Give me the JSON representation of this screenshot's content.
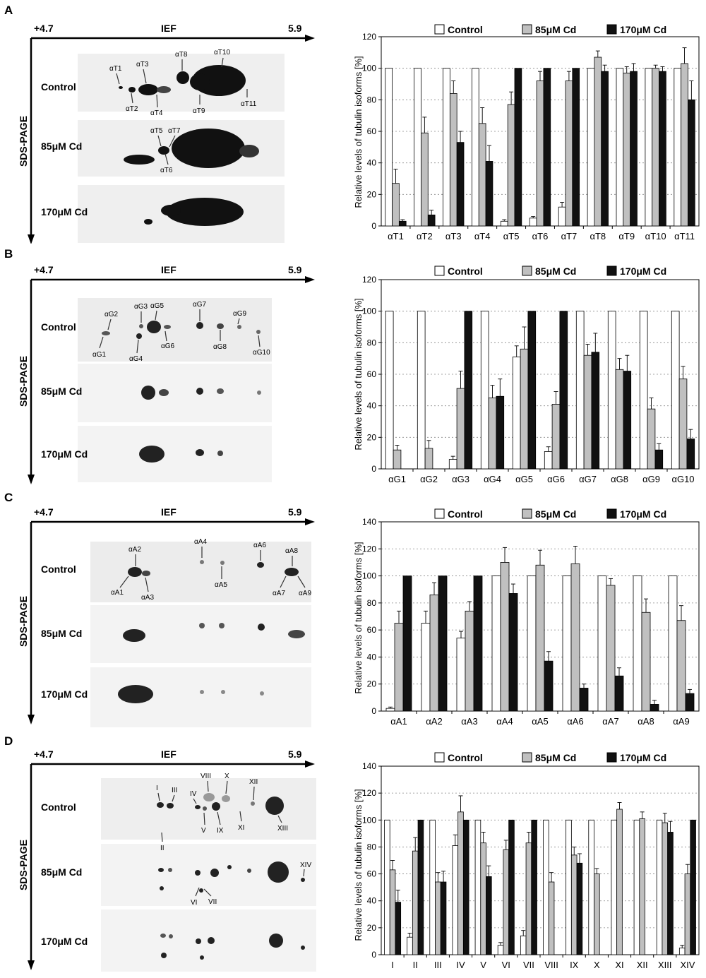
{
  "figure": {
    "panel_letters": [
      "A",
      "B",
      "C",
      "D"
    ]
  },
  "gel": {
    "ief_label": "IEF",
    "ief_left": "+4.7",
    "ief_right": "5.9",
    "sds_label": "SDS-PAGE",
    "row_labels": [
      "Control",
      "85μM Cd",
      "170μM Cd"
    ]
  },
  "legend": {
    "labels": [
      "Control",
      "85μM Cd",
      "170μM Cd"
    ],
    "colors": [
      "#ffffff",
      "#c0c0c0",
      "#111111"
    ]
  },
  "spot_labels": [
    [
      "αT1",
      "αT2",
      "αT3",
      "αT4",
      "αT5",
      "αT6",
      "αT7",
      "αT8",
      "αT9",
      "αT10",
      "αT11"
    ],
    [
      "αG1",
      "αG2",
      "αG3",
      "αG4",
      "αG5",
      "αG6",
      "αG7",
      "αG8",
      "αG9",
      "αG10"
    ],
    [
      "αA1",
      "αA2",
      "αA3",
      "αA4",
      "αA5",
      "αA6",
      "αA7",
      "αA8",
      "αA9"
    ],
    [
      "I",
      "II",
      "III",
      "IV",
      "V",
      "VI",
      "VII",
      "VIII",
      "IX",
      "X",
      "XI",
      "XII",
      "XIII",
      "XIV"
    ]
  ],
  "chart_data": [
    {
      "type": "bar",
      "ylabel": "Relative levels of tubulin isoforms [%]",
      "ylim": [
        0,
        120
      ],
      "yticks": [
        0,
        20,
        40,
        60,
        80,
        100,
        120
      ],
      "grid": "horizontal dotted",
      "legend_position": "top",
      "categories": [
        "αT1",
        "αT2",
        "αT3",
        "αT4",
        "αT5",
        "αT6",
        "αT7",
        "αT8",
        "αT9",
        "αT10",
        "αT11"
      ],
      "series": [
        {
          "name": "Control",
          "values": [
            100,
            100,
            100,
            100,
            3,
            5,
            12,
            100,
            100,
            100,
            100
          ],
          "errors": [
            0,
            0,
            0,
            0,
            1,
            1,
            3,
            0,
            0,
            0,
            0
          ]
        },
        {
          "name": "85μM Cd",
          "values": [
            27,
            59,
            84,
            65,
            77,
            92,
            92,
            107,
            97,
            100,
            103
          ],
          "errors": [
            9,
            10,
            8,
            10,
            8,
            6,
            6,
            4,
            4,
            2,
            10
          ]
        },
        {
          "name": "170μM Cd",
          "values": [
            3,
            7,
            53,
            41,
            100,
            100,
            100,
            98,
            98,
            98,
            80
          ],
          "errors": [
            1,
            3,
            7,
            10,
            0,
            0,
            0,
            4,
            5,
            3,
            12
          ]
        }
      ]
    },
    {
      "type": "bar",
      "ylabel": "Relative levels of tubulin isoforms [%]",
      "ylim": [
        0,
        120
      ],
      "yticks": [
        0,
        20,
        40,
        60,
        80,
        100,
        120
      ],
      "grid": "horizontal dotted",
      "legend_position": "top",
      "categories": [
        "αG1",
        "αG2",
        "αG3",
        "αG4",
        "αG5",
        "αG6",
        "αG7",
        "αG8",
        "αG9",
        "αG10"
      ],
      "series": [
        {
          "name": "Control",
          "values": [
            100,
            100,
            6,
            100,
            71,
            11,
            100,
            100,
            100,
            100
          ],
          "errors": [
            0,
            0,
            2,
            0,
            7,
            3,
            0,
            0,
            0,
            0
          ]
        },
        {
          "name": "85μM Cd",
          "values": [
            12,
            13,
            51,
            45,
            76,
            41,
            72,
            63,
            38,
            57
          ],
          "errors": [
            3,
            5,
            11,
            8,
            14,
            8,
            7,
            7,
            7,
            8
          ]
        },
        {
          "name": "170μM Cd",
          "values": [
            0,
            0,
            100,
            46,
            100,
            100,
            74,
            62,
            12,
            19
          ],
          "errors": [
            0,
            0,
            0,
            11,
            0,
            0,
            12,
            10,
            4,
            6
          ]
        }
      ]
    },
    {
      "type": "bar",
      "ylabel": "Relative levels of tubulin isoforms [%]",
      "ylim": [
        0,
        140
      ],
      "yticks": [
        0,
        20,
        40,
        60,
        80,
        100,
        120,
        140
      ],
      "grid": "horizontal dotted",
      "legend_position": "top",
      "categories": [
        "αA1",
        "αA2",
        "αA3",
        "αA4",
        "αA5",
        "αA6",
        "αA7",
        "αA8",
        "αA9"
      ],
      "series": [
        {
          "name": "Control",
          "values": [
            2,
            65,
            54,
            100,
            100,
            100,
            100,
            100,
            100
          ],
          "errors": [
            1,
            9,
            5,
            0,
            0,
            0,
            0,
            0,
            0
          ]
        },
        {
          "name": "85μM Cd",
          "values": [
            65,
            86,
            74,
            110,
            108,
            109,
            93,
            73,
            67
          ],
          "errors": [
            9,
            9,
            7,
            11,
            11,
            13,
            5,
            10,
            11
          ]
        },
        {
          "name": "170μM Cd",
          "values": [
            100,
            100,
            100,
            87,
            37,
            17,
            26,
            5,
            13
          ],
          "errors": [
            0,
            0,
            0,
            7,
            7,
            3,
            6,
            3,
            3
          ]
        }
      ]
    },
    {
      "type": "bar",
      "ylabel": "Relative levels of tubulin isoforms [%]",
      "ylim": [
        0,
        140
      ],
      "yticks": [
        0,
        20,
        40,
        60,
        80,
        100,
        120,
        140
      ],
      "grid": "horizontal dotted",
      "legend_position": "top",
      "categories": [
        "I",
        "II",
        "III",
        "IV",
        "V",
        "VI",
        "VII",
        "VIII",
        "IX",
        "X",
        "XI",
        "XII",
        "XIII",
        "XIV"
      ],
      "series": [
        {
          "name": "Control",
          "values": [
            100,
            13,
            100,
            81,
            100,
            7,
            14,
            100,
            100,
            100,
            100,
            100,
            100,
            5
          ],
          "errors": [
            0,
            3,
            0,
            8,
            0,
            2,
            4,
            0,
            0,
            0,
            0,
            0,
            0,
            2
          ]
        },
        {
          "name": "85μM Cd",
          "values": [
            63,
            77,
            54,
            106,
            83,
            78,
            83,
            54,
            74,
            60,
            108,
            101,
            98,
            60
          ],
          "errors": [
            7,
            10,
            7,
            12,
            8,
            7,
            8,
            7,
            6,
            4,
            5,
            5,
            7,
            7
          ]
        },
        {
          "name": "170μM Cd",
          "values": [
            39,
            100,
            54,
            100,
            58,
            100,
            100,
            0,
            68,
            0,
            0,
            0,
            91,
            100
          ],
          "errors": [
            9,
            0,
            8,
            0,
            8,
            0,
            0,
            0,
            7,
            0,
            0,
            0,
            8,
            0
          ]
        }
      ]
    }
  ]
}
